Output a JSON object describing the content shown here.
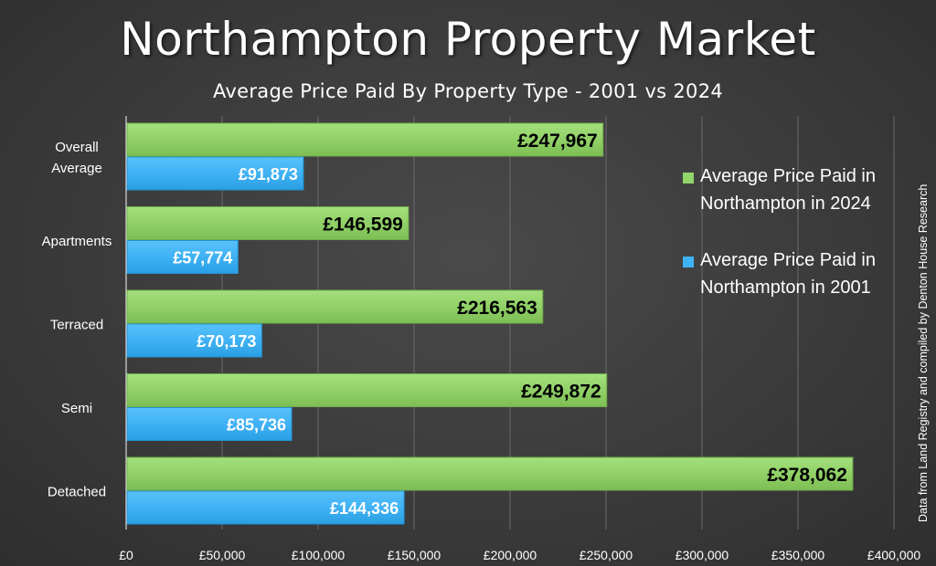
{
  "title": "Northampton Property Market",
  "subtitle": "Average Price Paid By Property Type - 2001 vs 2024",
  "source_note": "Data from Land Registry and compiled by Denton House Research",
  "colors": {
    "series_2024": "#92d36a",
    "series_2001": "#3fb3f5",
    "label_2024": "#000000",
    "label_2001": "#ffffff",
    "gridline": "#6a6a6a",
    "text": "#ffffff"
  },
  "chart_data": {
    "type": "bar",
    "orientation": "horizontal",
    "title": "Northampton Property Market",
    "subtitle": "Average Price Paid By Property Type - 2001 vs 2024",
    "categories": [
      [
        "Overall",
        "Average"
      ],
      [
        "Apartments"
      ],
      [
        "Terraced"
      ],
      [
        "Semi"
      ],
      [
        "Detached"
      ]
    ],
    "series": [
      {
        "name": "Average Price Paid in Northampton in 2024",
        "legend_lines": [
          "Average Price Paid in",
          "Northampton in 2024"
        ],
        "values": [
          247967,
          146599,
          216563,
          249872,
          378062
        ],
        "labels": [
          "£247,967",
          "£146,599",
          "£216,563",
          "£249,872",
          "£378,062"
        ]
      },
      {
        "name": "Average Price Paid in Northampton in 2001",
        "legend_lines": [
          "Average Price Paid in",
          "Northampton in 2001"
        ],
        "values": [
          91873,
          57774,
          70173,
          85736,
          144336
        ],
        "labels": [
          "£91,873",
          "£57,774",
          "£70,173",
          "£85,736",
          "£144,336"
        ]
      }
    ],
    "xlim": [
      0,
      400000
    ],
    "xticks": [
      0,
      50000,
      100000,
      150000,
      200000,
      250000,
      300000,
      350000,
      400000
    ],
    "xtick_labels": [
      "£0",
      "£50,000",
      "£100,000",
      "£150,000",
      "£200,000",
      "£250,000",
      "£300,000",
      "£350,000",
      "£400,000"
    ],
    "grid": true,
    "legend_position": "right"
  }
}
